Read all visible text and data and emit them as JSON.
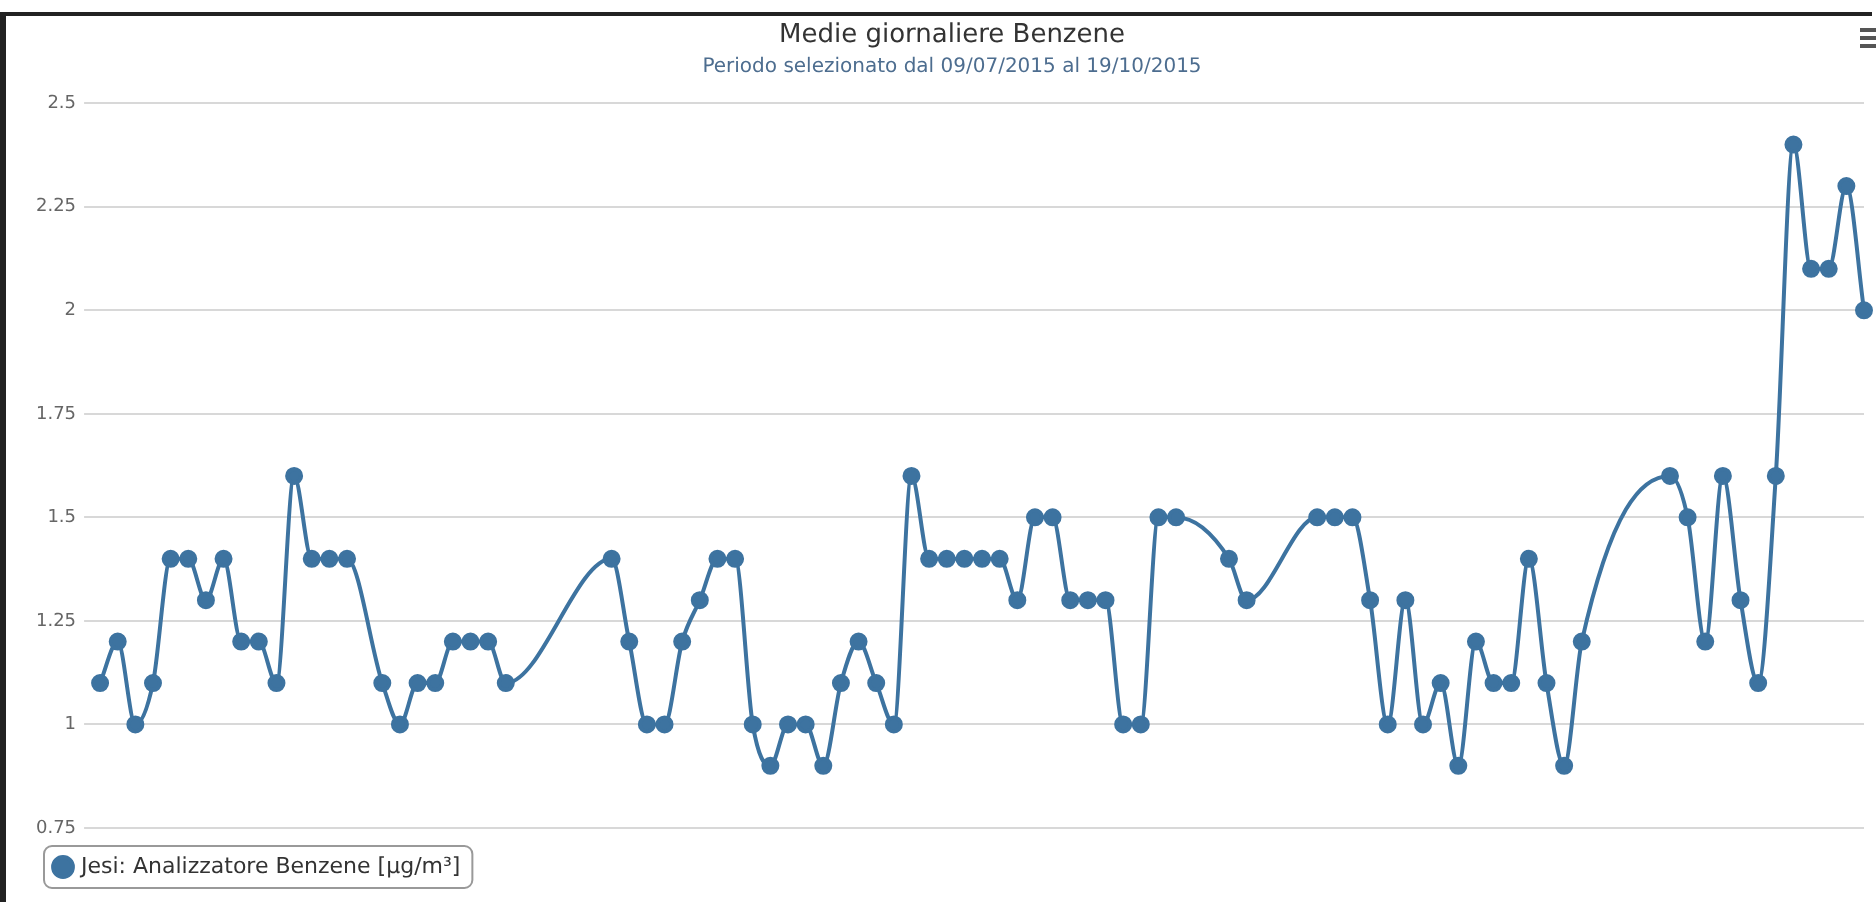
{
  "chart_data": {
    "type": "line",
    "title": "Medie giornaliere Benzene",
    "subtitle": "Periodo selezionato dal 09/07/2015 al 19/10/2015",
    "categories": [
      null,
      null,
      null,
      null,
      null,
      null,
      null,
      null,
      null,
      null,
      null,
      null,
      null,
      null,
      null,
      null,
      null,
      null,
      null,
      null,
      null,
      null,
      null,
      null,
      null,
      null,
      null,
      null,
      null,
      null,
      null,
      null,
      null,
      null,
      null,
      null,
      null,
      null,
      null,
      null,
      null,
      null,
      null,
      null,
      null,
      null,
      null,
      null,
      null,
      null,
      null,
      null,
      null,
      null,
      null,
      null,
      null,
      null,
      null,
      null,
      null,
      null,
      null,
      null,
      null,
      null,
      null,
      null,
      null,
      null,
      null,
      null,
      null,
      null,
      null,
      null,
      null,
      null,
      null,
      null,
      null,
      null,
      null,
      null,
      null,
      null,
      null,
      null,
      null,
      null,
      null,
      null,
      null,
      null,
      null,
      null,
      null,
      null,
      null,
      null,
      null
    ],
    "series": [
      {
        "name": "Jesi: Analizzatore Benzene [µg/m³]",
        "color": "#3d73a0",
        "values": [
          1.1,
          1.2,
          1.0,
          1.1,
          1.4,
          1.4,
          1.3,
          1.4,
          1.2,
          1.2,
          1.1,
          1.6,
          1.4,
          1.4,
          1.4,
          null,
          1.1,
          1.0,
          1.1,
          1.1,
          1.2,
          1.2,
          1.2,
          1.1,
          null,
          null,
          null,
          null,
          null,
          1.4,
          1.2,
          1.0,
          1.0,
          1.2,
          1.3,
          1.4,
          1.4,
          1.0,
          0.9,
          1.0,
          1.0,
          0.9,
          1.1,
          1.2,
          1.1,
          1.0,
          1.6,
          1.4,
          1.4,
          1.4,
          1.4,
          1.4,
          1.3,
          1.5,
          1.5,
          1.3,
          1.3,
          1.3,
          1.0,
          1.0,
          1.5,
          1.5,
          null,
          null,
          1.4,
          1.3,
          null,
          null,
          null,
          1.5,
          1.5,
          1.5,
          1.3,
          1.0,
          1.3,
          1.0,
          1.1,
          0.9,
          1.2,
          1.1,
          1.1,
          1.4,
          1.1,
          0.9,
          1.2,
          null,
          null,
          null,
          null,
          1.6,
          1.5,
          1.2,
          1.6,
          1.3,
          1.1,
          1.6,
          2.4,
          2.1,
          2.1,
          2.3,
          2.0
        ]
      }
    ],
    "ylim": [
      0.75,
      2.5
    ],
    "yticks": [
      0.75,
      1,
      1.25,
      1.5,
      1.75,
      2,
      2.25,
      2.5
    ],
    "grid": "y",
    "legend": "bottom left",
    "marker": "circle",
    "tick_labels": "y"
  }
}
